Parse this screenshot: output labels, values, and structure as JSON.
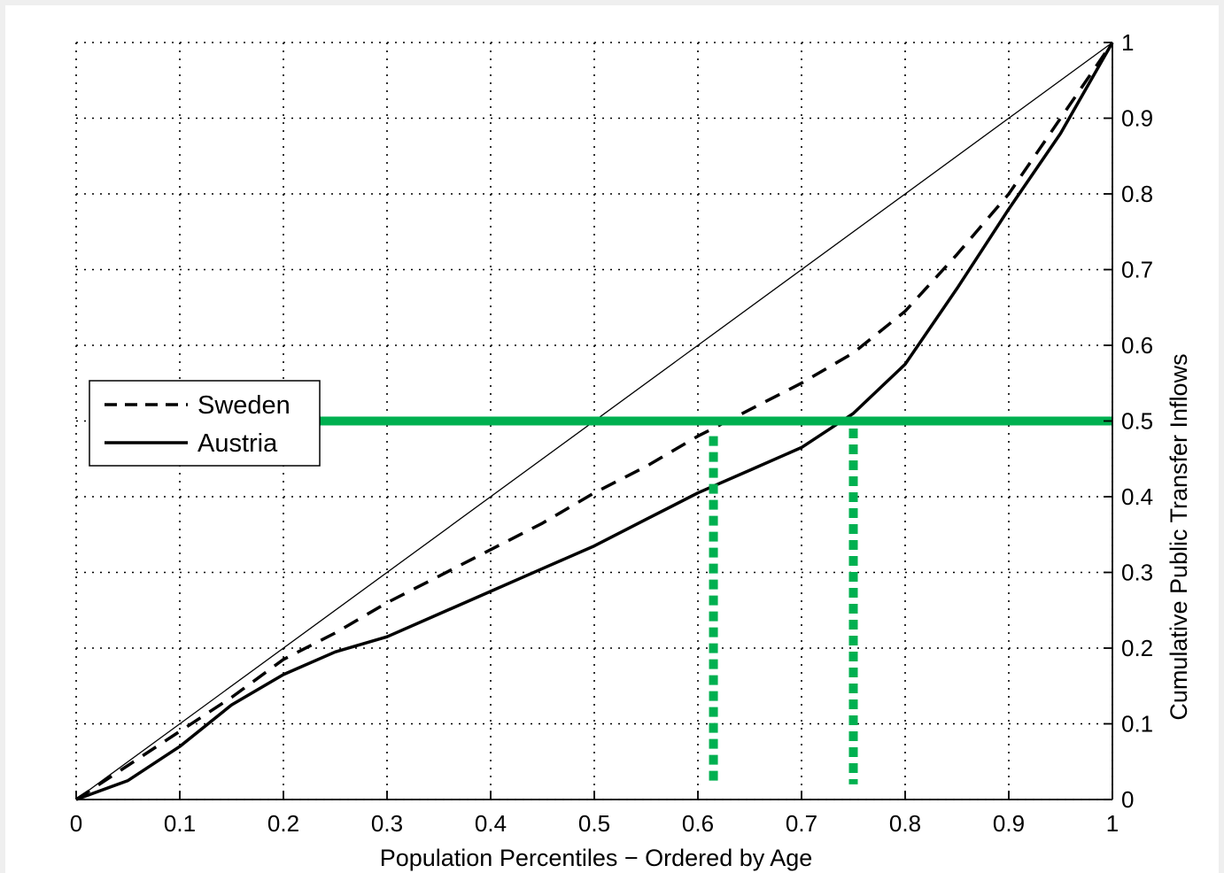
{
  "chart_data": {
    "type": "line",
    "xlabel": "Population Percentiles − Ordered by Age",
    "ylabel": "Cumulative Public Transfer Inflows",
    "xlim": [
      0,
      1
    ],
    "ylim": [
      0,
      1
    ],
    "x_ticks": [
      "0",
      "0.1",
      "0.2",
      "0.3",
      "0.4",
      "0.5",
      "0.6",
      "0.7",
      "0.8",
      "0.9",
      "1"
    ],
    "y_ticks": [
      "0",
      "0.1",
      "0.2",
      "0.3",
      "0.4",
      "0.5",
      "0.6",
      "0.7",
      "0.8",
      "0.9",
      "1"
    ],
    "y_axis_side": "right",
    "grid": true,
    "legend_position": "middle-left",
    "legend": [
      {
        "label": "Sweden",
        "style": "dashed"
      },
      {
        "label": "Austria",
        "style": "solid"
      }
    ],
    "series": [
      {
        "name": "Sweden",
        "style": "dashed",
        "color": "#000000",
        "x": [
          0,
          0.05,
          0.1,
          0.15,
          0.2,
          0.25,
          0.3,
          0.35,
          0.4,
          0.45,
          0.5,
          0.55,
          0.6,
          0.65,
          0.7,
          0.75,
          0.8,
          0.85,
          0.9,
          0.95,
          1
        ],
        "y": [
          0,
          0.045,
          0.09,
          0.135,
          0.185,
          0.22,
          0.26,
          0.295,
          0.33,
          0.365,
          0.405,
          0.44,
          0.48,
          0.515,
          0.55,
          0.59,
          0.645,
          0.72,
          0.8,
          0.9,
          1
        ]
      },
      {
        "name": "Austria",
        "style": "solid",
        "color": "#000000",
        "x": [
          0,
          0.05,
          0.1,
          0.15,
          0.2,
          0.25,
          0.3,
          0.35,
          0.4,
          0.45,
          0.5,
          0.55,
          0.6,
          0.65,
          0.7,
          0.75,
          0.8,
          0.85,
          0.9,
          0.95,
          1
        ],
        "y": [
          0,
          0.025,
          0.07,
          0.125,
          0.165,
          0.195,
          0.215,
          0.245,
          0.275,
          0.305,
          0.335,
          0.37,
          0.405,
          0.435,
          0.465,
          0.51,
          0.575,
          0.675,
          0.78,
          0.88,
          1
        ]
      },
      {
        "style": "thin-solid",
        "color": "#000000",
        "x": [
          0,
          1
        ],
        "y": [
          0,
          1
        ]
      }
    ],
    "annotations": {
      "color": "#00b050",
      "horizontal_line": {
        "y": 0.5,
        "x_from": 0.23,
        "x_to": 1
      },
      "vertical_dotted_lines": [
        {
          "x": 0.615,
          "y_from": 0.48,
          "y_to": 0.02
        },
        {
          "x": 0.75,
          "y_from": 0.49,
          "y_to": 0.02
        }
      ]
    }
  }
}
